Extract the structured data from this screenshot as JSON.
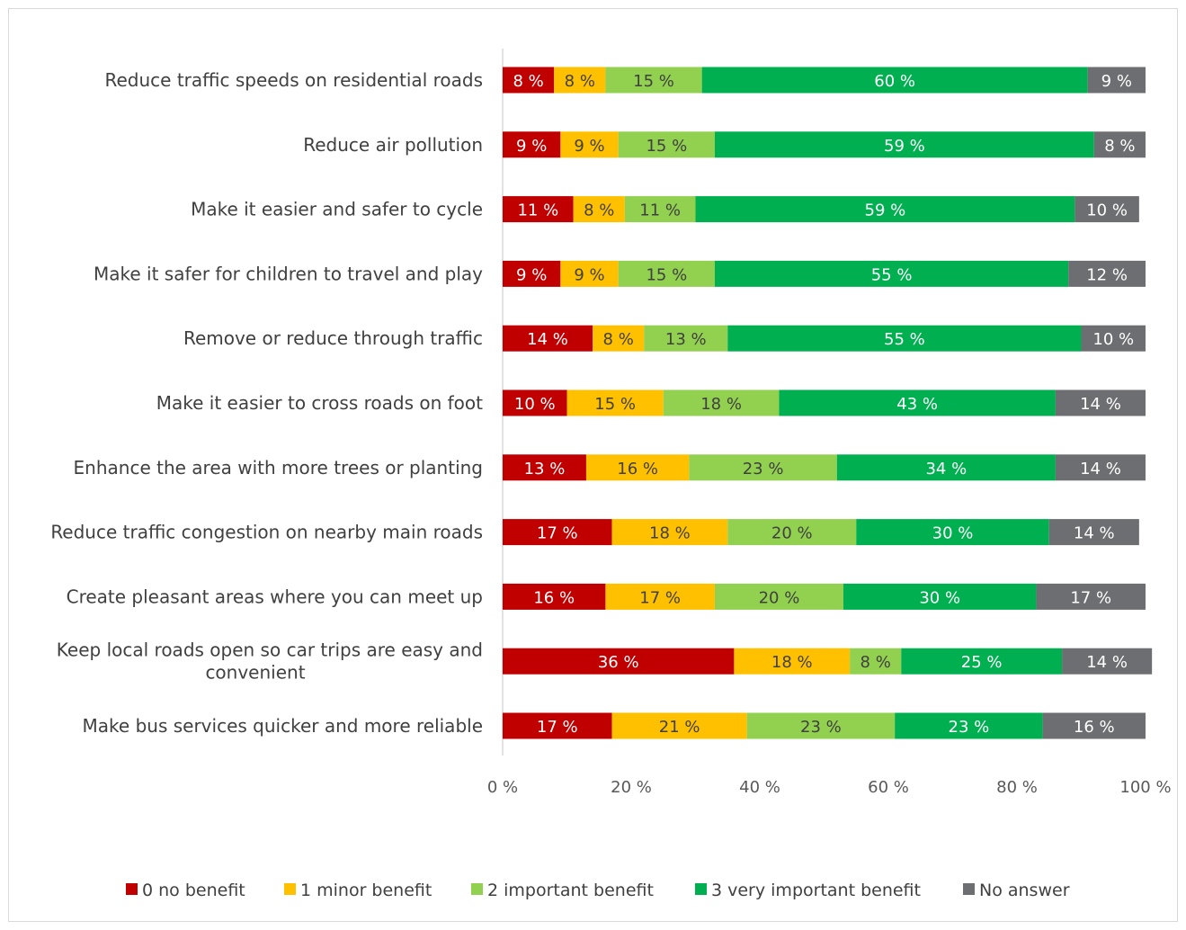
{
  "chart_data": {
    "type": "bar",
    "orientation": "horizontal",
    "stacked": true,
    "percent_stacked": true,
    "legend_position": "bottom",
    "grid": false,
    "xlim": [
      0,
      100
    ],
    "x_ticks": [
      "0 %",
      "20 %",
      "40 %",
      "60 %",
      "80 %",
      "100 %"
    ],
    "categories": [
      [
        "Reduce traffic speeds on residential roads"
      ],
      [
        "Reduce air pollution"
      ],
      [
        "Make it easier and safer to cycle"
      ],
      [
        "Make it safer for children to travel and play"
      ],
      [
        "Remove or reduce through traffic"
      ],
      [
        "Make it easier to cross roads on foot"
      ],
      [
        "Enhance the area with more trees or planting"
      ],
      [
        "Reduce traffic congestion on nearby main roads"
      ],
      [
        "Create pleasant areas where you can meet up"
      ],
      [
        "Keep local roads open so car trips are easy and",
        "convenient"
      ],
      [
        "Make bus services quicker and more reliable"
      ]
    ],
    "series": [
      {
        "name": "0 no benefit",
        "color": "#c00000",
        "label_color": "#ffffff",
        "values": [
          8,
          9,
          11,
          9,
          14,
          10,
          13,
          17,
          16,
          36,
          17
        ]
      },
      {
        "name": "1 minor benefit",
        "color": "#ffc000",
        "label_color": "#404040",
        "values": [
          8,
          9,
          8,
          9,
          8,
          15,
          16,
          18,
          17,
          18,
          21
        ]
      },
      {
        "name": "2 important benefit",
        "color": "#92d050",
        "label_color": "#404040",
        "values": [
          15,
          15,
          11,
          15,
          13,
          18,
          23,
          20,
          20,
          8,
          23
        ]
      },
      {
        "name": "3 very important benefit",
        "color": "#00b050",
        "label_color": "#ffffff",
        "values": [
          60,
          59,
          59,
          55,
          55,
          43,
          34,
          30,
          30,
          25,
          23
        ]
      },
      {
        "name": "No answer",
        "color": "#6d6e71",
        "label_color": "#ffffff",
        "values": [
          9,
          8,
          10,
          12,
          10,
          14,
          14,
          14,
          17,
          14,
          16
        ]
      }
    ],
    "value_suffix": " %"
  }
}
